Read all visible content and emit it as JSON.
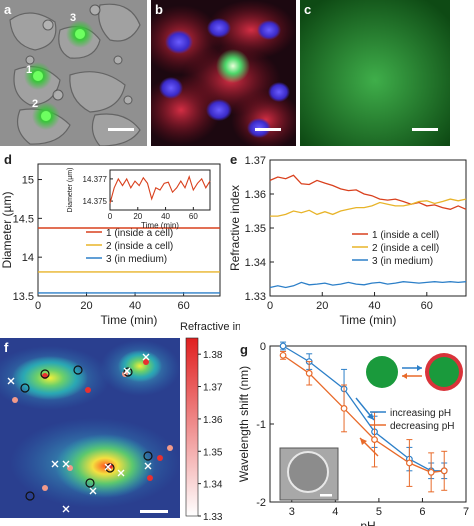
{
  "panels": {
    "a": {
      "label": "a",
      "cells": [
        "1",
        "2",
        "3"
      ]
    },
    "b": {
      "label": "b"
    },
    "c": {
      "label": "c"
    },
    "d": {
      "label": "d"
    },
    "e": {
      "label": "e"
    },
    "f": {
      "label": "f"
    },
    "g": {
      "label": "g"
    }
  },
  "colors": {
    "red": "#d9401d",
    "yellow": "#e8b429",
    "blue": "#2c7fc8",
    "orange": "#e86a2a"
  },
  "chart_data": [
    {
      "id": "d",
      "type": "line",
      "xlabel": "Time (min)",
      "ylabel": "Diameter (µm)",
      "xlim": [
        0,
        75
      ],
      "ylim": [
        13.5,
        15.2
      ],
      "xticks": [
        "0",
        "20",
        "40",
        "60"
      ],
      "yticks": [
        "13.5",
        "14",
        "14.5",
        "15"
      ],
      "series": [
        {
          "name": "1 (inside a cell)",
          "color": "#d9401d",
          "x": [
            0,
            75
          ],
          "y": [
            14.376,
            14.376
          ]
        },
        {
          "name": "2 (inside a cell)",
          "color": "#e8b429",
          "x": [
            0,
            75
          ],
          "y": [
            13.81,
            13.81
          ]
        },
        {
          "name": "3 (in medium)",
          "color": "#2c7fc8",
          "x": [
            0,
            75
          ],
          "y": [
            13.54,
            13.54
          ]
        }
      ],
      "inset": {
        "ylabel": "Diameter (µm)",
        "xlabel": "Time (min)",
        "yticks": [
          "14.375",
          "14.377"
        ],
        "xticks": [
          "0",
          "20",
          "40",
          "60"
        ],
        "xlim": [
          0,
          72
        ],
        "ylim": [
          14.3742,
          14.3778
        ],
        "x": [
          0,
          3,
          6,
          9,
          12,
          15,
          18,
          21,
          24,
          27,
          30,
          33,
          36,
          39,
          42,
          45,
          48,
          51,
          54,
          57,
          60,
          63,
          66,
          69,
          72
        ],
        "y": [
          14.3748,
          14.3762,
          14.377,
          14.3764,
          14.377,
          14.3762,
          14.3768,
          14.3764,
          14.3771,
          14.3766,
          14.3752,
          14.3762,
          14.376,
          14.3766,
          14.3767,
          14.3758,
          14.3762,
          14.3768,
          14.3762,
          14.3772,
          14.376,
          14.3766,
          14.377,
          14.3762,
          14.3768
        ]
      }
    },
    {
      "id": "e",
      "type": "line",
      "xlabel": "Time (min)",
      "ylabel": "Refractive index",
      "xlim": [
        0,
        75
      ],
      "ylim": [
        1.33,
        1.37
      ],
      "xticks": [
        "0",
        "20",
        "40",
        "60"
      ],
      "yticks": [
        "1.33",
        "1.34",
        "1.35",
        "1.36",
        "1.37"
      ],
      "series": [
        {
          "name": "1 (inside a cell)",
          "color": "#d9401d",
          "x": [
            0,
            3,
            6,
            9,
            12,
            15,
            18,
            21,
            24,
            27,
            30,
            33,
            36,
            39,
            42,
            45,
            48,
            51,
            54,
            57,
            60,
            63,
            66,
            69,
            72,
            75
          ],
          "y": [
            1.364,
            1.365,
            1.3645,
            1.3655,
            1.363,
            1.3628,
            1.364,
            1.3632,
            1.3625,
            1.3615,
            1.361,
            1.3612,
            1.36,
            1.3595,
            1.3585,
            1.3582,
            1.3585,
            1.3578,
            1.357,
            1.3575,
            1.3565,
            1.3568,
            1.356,
            1.3555,
            1.3565,
            1.3555
          ]
        },
        {
          "name": "2 (inside a cell)",
          "color": "#e8b429",
          "x": [
            0,
            3,
            6,
            9,
            12,
            15,
            18,
            21,
            24,
            27,
            30,
            33,
            36,
            39,
            42,
            45,
            48,
            51,
            54,
            57,
            60,
            63,
            66,
            69,
            72,
            75
          ],
          "y": [
            1.3535,
            1.3535,
            1.354,
            1.355,
            1.3545,
            1.3552,
            1.354,
            1.3548,
            1.354,
            1.355,
            1.3555,
            1.356,
            1.356,
            1.3565,
            1.3575,
            1.357,
            1.3565,
            1.3565,
            1.357,
            1.3578,
            1.358,
            1.3572,
            1.3578,
            1.3585,
            1.358,
            1.3585
          ]
        },
        {
          "name": "3 (in medium)",
          "color": "#2c7fc8",
          "x": [
            0,
            3,
            6,
            9,
            12,
            15,
            18,
            21,
            24,
            27,
            30,
            33,
            36,
            39,
            42,
            45,
            48,
            51,
            54,
            57,
            60,
            63,
            66,
            69,
            72,
            75
          ],
          "y": [
            1.3325,
            1.333,
            1.3325,
            1.333,
            1.334,
            1.3333,
            1.3335,
            1.3338,
            1.3332,
            1.3335,
            1.334,
            1.3335,
            1.3333,
            1.3338,
            1.334,
            1.3335,
            1.3338,
            1.3342,
            1.334,
            1.3338,
            1.334,
            1.3342,
            1.334,
            1.3342,
            1.334,
            1.3342
          ]
        }
      ]
    },
    {
      "id": "f",
      "type": "heatmap",
      "colorbar_title": "Refractive index",
      "colorbar_ticks": [
        "1.33",
        "1.34",
        "1.35",
        "1.36",
        "1.37",
        "1.38"
      ],
      "range": [
        1.33,
        1.385
      ]
    },
    {
      "id": "g",
      "type": "line",
      "xlabel": "pH",
      "ylabel": "Wavelength shift (nm)",
      "xlim": [
        2.5,
        7
      ],
      "ylim": [
        -2,
        0
      ],
      "xticks": [
        "3",
        "4",
        "5",
        "6",
        "7"
      ],
      "yticks": [
        "-2",
        "-1",
        "0"
      ],
      "series": [
        {
          "name": "increasing pH",
          "color": "#2c7fc8",
          "x": [
            2.8,
            3.4,
            4.2,
            4.9,
            5.7,
            6.2,
            6.5
          ],
          "y": [
            0.0,
            -0.2,
            -0.55,
            -1.1,
            -1.45,
            -1.6,
            -1.6
          ],
          "err": [
            0.05,
            0.1,
            0.25,
            0.2,
            0.15,
            0.1,
            0.1
          ]
        },
        {
          "name": "decreasing pH",
          "color": "#e86a2a",
          "x": [
            2.8,
            3.4,
            4.2,
            4.9,
            5.7,
            6.2,
            6.5
          ],
          "y": [
            -0.12,
            -0.35,
            -0.8,
            -1.2,
            -1.5,
            -1.62,
            -1.6
          ],
          "err": [
            0.05,
            0.15,
            0.3,
            0.35,
            0.3,
            0.25,
            0.25
          ]
        }
      ]
    }
  ]
}
